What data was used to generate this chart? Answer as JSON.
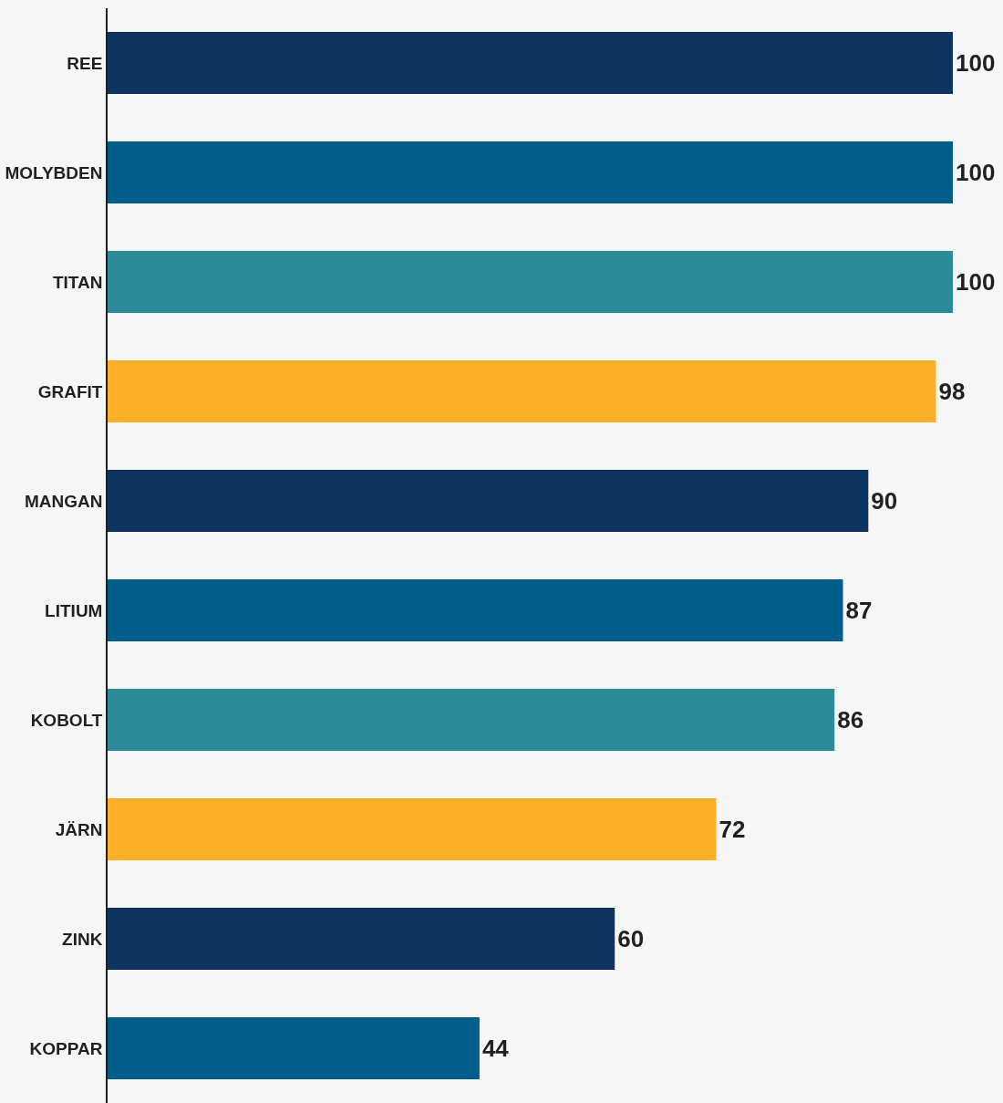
{
  "chart_data": {
    "type": "bar",
    "orientation": "horizontal",
    "categories": [
      "REE",
      "MOLYBDEN",
      "TITAN",
      "GRAFIT",
      "MANGAN",
      "LITIUM",
      "KOBOLT",
      "JÄRN",
      "ZINK",
      "KOPPAR"
    ],
    "values": [
      100,
      100,
      100,
      98,
      90,
      87,
      86,
      72,
      60,
      44
    ],
    "colors": [
      "#0d355f",
      "#005d8a",
      "#2c8b9b",
      "#fbb027",
      "#0d355f",
      "#005d8a",
      "#2c8b9b",
      "#fbb027",
      "#0d355f",
      "#005d8a"
    ],
    "xlim": [
      0,
      100
    ],
    "data_labels": true,
    "tick_labels": "y"
  }
}
